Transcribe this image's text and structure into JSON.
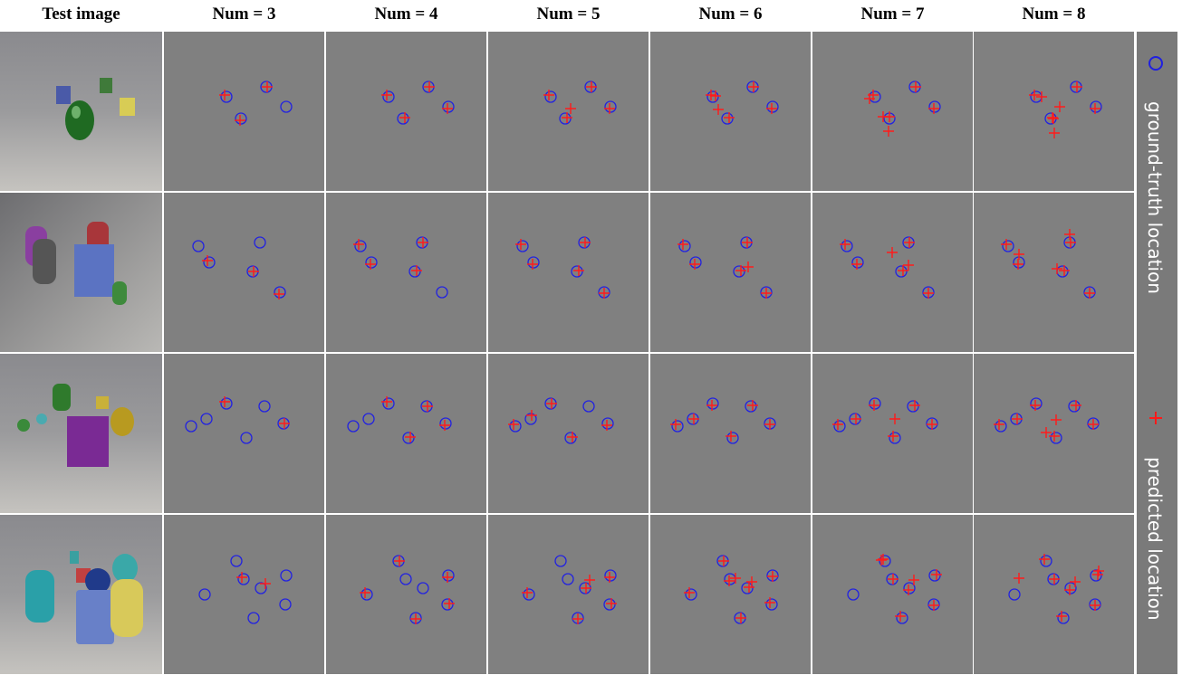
{
  "columns": [
    "Test image",
    "Num = 3",
    "Num = 4",
    "Num = 5",
    "Num = 6",
    "Num = 7",
    "Num = 8"
  ],
  "legend": {
    "circle": "ground-truth location",
    "cross": "predicted location"
  }
}
